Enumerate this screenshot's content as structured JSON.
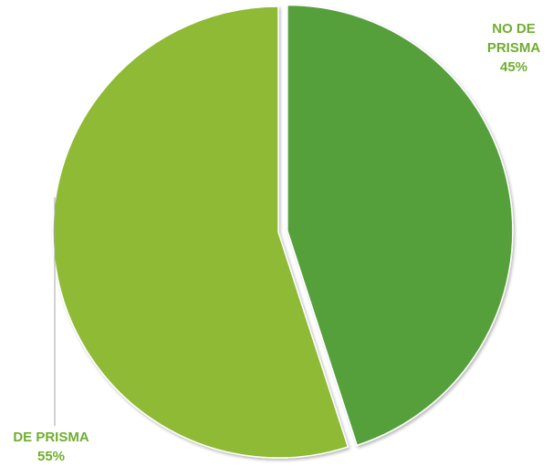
{
  "chart_data": {
    "type": "pie",
    "title": "",
    "slices": [
      {
        "label_lines": [
          "NO DE",
          "PRISMA"
        ],
        "value": 45,
        "value_text": "45%",
        "color": "#56a03b",
        "exploded": true
      },
      {
        "label_lines": [
          "DE PRISMA"
        ],
        "value": 55,
        "value_text": "55%",
        "color": "#8fba34",
        "exploded": false
      }
    ],
    "label_color": "#6fae2e",
    "leader_line_color": "#a6a6a6",
    "legend": "none"
  }
}
